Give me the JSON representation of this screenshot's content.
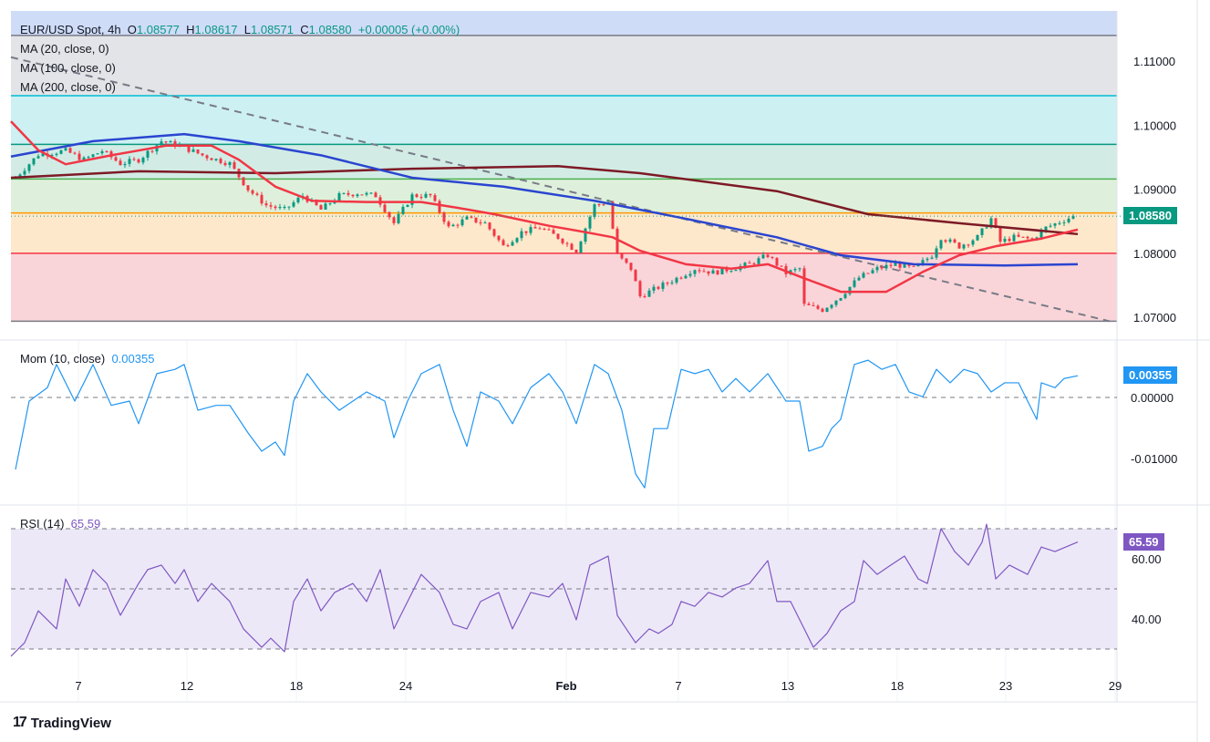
{
  "header": {
    "symbol": "EUR/USD Spot, 4h",
    "open_label": "O",
    "open": "1.08577",
    "high_label": "H",
    "high": "1.08617",
    "low_label": "L",
    "low": "1.08571",
    "close_label": "C",
    "close": "1.08580",
    "change": "+0.00005 (+0.00%)"
  },
  "indicators": {
    "ma20": "MA (20, close, 0)",
    "ma100": "MA (100, close, 0)",
    "ma200": "MA (200, close, 0)",
    "mom": "Mom (10, close)",
    "mom_value": "0.00355",
    "rsi": "RSI (14)",
    "rsi_value": "65.59"
  },
  "tags": {
    "price": "1.08580",
    "mom": "0.00355",
    "rsi": "65.59"
  },
  "logo": "TradingView",
  "colors": {
    "up": "#089981",
    "down": "#f23645",
    "ma20": "#f23645",
    "ma100": "#2a45d0",
    "ma200": "#7d1a26",
    "mom": "#2196f3",
    "rsi": "#7e57c2"
  },
  "chart_data": [
    {
      "type": "candlestick",
      "title": "EUR/USD Spot, 4h",
      "y_ticks": [
        "1.11000",
        "1.10000",
        "1.09000",
        "1.08000",
        "1.07000"
      ],
      "x_ticks": [
        "7",
        "12",
        "18",
        "24",
        "Feb",
        "7",
        "13",
        "18",
        "23",
        "29"
      ],
      "ylim": [
        1.0694,
        1.114
      ],
      "fib_levels": [
        1.114,
        1.1046,
        1.097,
        1.0916,
        1.0863,
        1.08,
        1.0694
      ],
      "trendline": [
        [
          0,
          1.1106
        ],
        [
          241,
          1.0694
        ]
      ],
      "close_keypoints": [
        [
          1,
          1.0918
        ],
        [
          6,
          1.0954
        ],
        [
          12,
          1.096
        ],
        [
          16,
          1.0946
        ],
        [
          20,
          1.096
        ],
        [
          24,
          1.094
        ],
        [
          28,
          1.0946
        ],
        [
          33,
          1.0975
        ],
        [
          37,
          1.0968
        ],
        [
          42,
          1.0953
        ],
        [
          48,
          1.094
        ],
        [
          52,
          1.09
        ],
        [
          56,
          1.0875
        ],
        [
          60,
          1.0868
        ],
        [
          64,
          1.089
        ],
        [
          68,
          1.0868
        ],
        [
          72,
          1.089
        ],
        [
          76,
          1.0894
        ],
        [
          80,
          1.089
        ],
        [
          84,
          1.0847
        ],
        [
          88,
          1.089
        ],
        [
          92,
          1.089
        ],
        [
          96,
          1.084
        ],
        [
          100,
          1.0854
        ],
        [
          104,
          1.0847
        ],
        [
          108,
          1.0811
        ],
        [
          112,
          1.0833
        ],
        [
          116,
          1.084
        ],
        [
          120,
          1.0825
        ],
        [
          124,
          1.0804
        ],
        [
          128,
          1.0875
        ],
        [
          131,
          1.088
        ],
        [
          133,
          1.0797
        ],
        [
          136,
          1.0776
        ],
        [
          138,
          1.0733
        ],
        [
          142,
          1.0747
        ],
        [
          146,
          1.0761
        ],
        [
          150,
          1.0776
        ],
        [
          154,
          1.077
        ],
        [
          158,
          1.0776
        ],
        [
          162,
          1.0783
        ],
        [
          166,
          1.0797
        ],
        [
          170,
          1.0769
        ],
        [
          173,
          1.0776
        ],
        [
          174,
          1.0719
        ],
        [
          178,
          1.0712
        ],
        [
          182,
          1.0733
        ],
        [
          186,
          1.0762
        ],
        [
          190,
          1.0776
        ],
        [
          194,
          1.0783
        ],
        [
          198,
          1.0776
        ],
        [
          202,
          1.0797
        ],
        [
          204,
          1.0825
        ],
        [
          208,
          1.0811
        ],
        [
          212,
          1.0825
        ],
        [
          215,
          1.0854
        ],
        [
          217,
          1.0818
        ],
        [
          220,
          1.0825
        ],
        [
          224,
          1.0822
        ],
        [
          227,
          1.084
        ],
        [
          233,
          1.0858
        ]
      ],
      "ma20": [
        [
          0,
          1.1006
        ],
        [
          6,
          1.0961
        ],
        [
          12,
          1.0939
        ],
        [
          22,
          1.0953
        ],
        [
          34,
          1.0968
        ],
        [
          44,
          1.0968
        ],
        [
          50,
          1.0946
        ],
        [
          58,
          1.0904
        ],
        [
          66,
          1.0882
        ],
        [
          78,
          1.088
        ],
        [
          90,
          1.088
        ],
        [
          98,
          1.0871
        ],
        [
          106,
          1.0861
        ],
        [
          118,
          1.0843
        ],
        [
          126,
          1.0833
        ],
        [
          132,
          1.0825
        ],
        [
          138,
          1.0804
        ],
        [
          148,
          1.0783
        ],
        [
          158,
          1.0776
        ],
        [
          166,
          1.0783
        ],
        [
          174,
          1.0761
        ],
        [
          182,
          1.074
        ],
        [
          192,
          1.074
        ],
        [
          200,
          1.0771
        ],
        [
          208,
          1.0797
        ],
        [
          216,
          1.0811
        ],
        [
          226,
          1.0823
        ],
        [
          234,
          1.0837
        ]
      ],
      "ma100": [
        [
          0,
          1.0951
        ],
        [
          18,
          1.0975
        ],
        [
          38,
          1.0986
        ],
        [
          50,
          1.0975
        ],
        [
          68,
          1.0953
        ],
        [
          88,
          1.0918
        ],
        [
          108,
          1.0904
        ],
        [
          128,
          1.0882
        ],
        [
          148,
          1.0854
        ],
        [
          168,
          1.0825
        ],
        [
          182,
          1.0797
        ],
        [
          198,
          1.0783
        ],
        [
          218,
          1.0781
        ],
        [
          234,
          1.0783
        ]
      ],
      "ma200": [
        [
          0,
          1.0918
        ],
        [
          28,
          1.0928
        ],
        [
          58,
          1.0925
        ],
        [
          88,
          1.0932
        ],
        [
          120,
          1.0936
        ],
        [
          138,
          1.0925
        ],
        [
          168,
          1.0897
        ],
        [
          188,
          1.0861
        ],
        [
          208,
          1.0847
        ],
        [
          234,
          1.083
        ]
      ]
    },
    {
      "type": "line",
      "title": "Mom (10, close)",
      "y_ticks": [
        "0.00000",
        "-0.01000"
      ],
      "values": [
        [
          1,
          -0.0118
        ],
        [
          4,
          -0.0006
        ],
        [
          8,
          0.0016
        ],
        [
          10,
          0.0054
        ],
        [
          14,
          -0.0006
        ],
        [
          18,
          0.0054
        ],
        [
          22,
          -0.0013
        ],
        [
          26,
          -0.0006
        ],
        [
          28,
          -0.0043
        ],
        [
          32,
          0.0039
        ],
        [
          36,
          0.0046
        ],
        [
          38,
          0.0054
        ],
        [
          41,
          -0.0021
        ],
        [
          45,
          -0.0013
        ],
        [
          48,
          -0.0013
        ],
        [
          52,
          -0.0058
        ],
        [
          55,
          -0.0088
        ],
        [
          58,
          -0.0073
        ],
        [
          60,
          -0.0095
        ],
        [
          62,
          -0.0006
        ],
        [
          65,
          0.0039
        ],
        [
          68,
          0.0009
        ],
        [
          72,
          -0.0021
        ],
        [
          75,
          -0.0006
        ],
        [
          78,
          0.0009
        ],
        [
          82,
          -0.0006
        ],
        [
          84,
          -0.0066
        ],
        [
          87,
          -0.0006
        ],
        [
          90,
          0.0039
        ],
        [
          94,
          0.0054
        ],
        [
          97,
          -0.0021
        ],
        [
          100,
          -0.008
        ],
        [
          103,
          0.0009
        ],
        [
          107,
          -0.0006
        ],
        [
          110,
          -0.0043
        ],
        [
          114,
          0.0016
        ],
        [
          118,
          0.0039
        ],
        [
          121,
          0.0009
        ],
        [
          124,
          -0.0043
        ],
        [
          128,
          0.0054
        ],
        [
          131,
          0.0039
        ],
        [
          134,
          -0.0021
        ],
        [
          137,
          -0.0125
        ],
        [
          139,
          -0.0148
        ],
        [
          141,
          -0.0051
        ],
        [
          144,
          -0.0051
        ],
        [
          147,
          0.0046
        ],
        [
          150,
          0.0039
        ],
        [
          153,
          0.0046
        ],
        [
          156,
          0.0009
        ],
        [
          159,
          0.0031
        ],
        [
          162,
          0.0009
        ],
        [
          166,
          0.0039
        ],
        [
          170,
          -0.0006
        ],
        [
          173,
          -0.0006
        ],
        [
          175,
          -0.0088
        ],
        [
          178,
          -0.008
        ],
        [
          180,
          -0.0051
        ],
        [
          182,
          -0.0036
        ],
        [
          185,
          0.0054
        ],
        [
          188,
          0.0061
        ],
        [
          191,
          0.0046
        ],
        [
          194,
          0.0054
        ],
        [
          197,
          0.0009
        ],
        [
          200,
          0.0001
        ],
        [
          203,
          0.0046
        ],
        [
          206,
          0.0024
        ],
        [
          209,
          0.0046
        ],
        [
          212,
          0.0039
        ],
        [
          215,
          0.0009
        ],
        [
          218,
          0.0024
        ],
        [
          221,
          0.0024
        ],
        [
          223,
          -0.0006
        ],
        [
          225,
          -0.0036
        ],
        [
          226,
          0.0024
        ],
        [
          229,
          0.0016
        ],
        [
          231,
          0.0031
        ],
        [
          234,
          0.00355
        ]
      ]
    },
    {
      "type": "line",
      "title": "RSI (14)",
      "y_ticks": [
        "60.00",
        "40.00"
      ],
      "bands": [
        70,
        50,
        30
      ],
      "values": [
        [
          0,
          27.6
        ],
        [
          3,
          32.1
        ],
        [
          6,
          42.7
        ],
        [
          10,
          36.7
        ],
        [
          12,
          53.3
        ],
        [
          15,
          44.2
        ],
        [
          18,
          56.4
        ],
        [
          21,
          51.8
        ],
        [
          24,
          41.2
        ],
        [
          28,
          51.8
        ],
        [
          30,
          56.4
        ],
        [
          33,
          57.9
        ],
        [
          36,
          51.8
        ],
        [
          38,
          56.4
        ],
        [
          41,
          45.8
        ],
        [
          44,
          51.8
        ],
        [
          48,
          45.8
        ],
        [
          51,
          36.7
        ],
        [
          55,
          30.6
        ],
        [
          57,
          33.6
        ],
        [
          60,
          29.1
        ],
        [
          62,
          45.8
        ],
        [
          65,
          53.3
        ],
        [
          68,
          42.7
        ],
        [
          71,
          48.8
        ],
        [
          75,
          51.8
        ],
        [
          78,
          45.8
        ],
        [
          81,
          56.4
        ],
        [
          84,
          36.7
        ],
        [
          87,
          45.8
        ],
        [
          90,
          54.8
        ],
        [
          94,
          48.8
        ],
        [
          97,
          38.2
        ],
        [
          100,
          36.7
        ],
        [
          103,
          45.8
        ],
        [
          107,
          48.8
        ],
        [
          110,
          36.7
        ],
        [
          114,
          48.8
        ],
        [
          118,
          47.3
        ],
        [
          121,
          51.8
        ],
        [
          124,
          39.7
        ],
        [
          127,
          57.9
        ],
        [
          131,
          60.9
        ],
        [
          133,
          41.2
        ],
        [
          137,
          32.1
        ],
        [
          140,
          36.7
        ],
        [
          142,
          35.2
        ],
        [
          145,
          38.2
        ],
        [
          147,
          45.8
        ],
        [
          150,
          44.2
        ],
        [
          153,
          48.8
        ],
        [
          156,
          47.3
        ],
        [
          159,
          50.3
        ],
        [
          162,
          51.8
        ],
        [
          166,
          59.4
        ],
        [
          168,
          45.8
        ],
        [
          171,
          45.8
        ],
        [
          174,
          36.7
        ],
        [
          176,
          30.6
        ],
        [
          179,
          35.2
        ],
        [
          182,
          42.7
        ],
        [
          185,
          45.8
        ],
        [
          187,
          59.4
        ],
        [
          190,
          54.8
        ],
        [
          193,
          57.9
        ],
        [
          196,
          60.9
        ],
        [
          199,
          53.3
        ],
        [
          201,
          51.8
        ],
        [
          204,
          70
        ],
        [
          207,
          62.4
        ],
        [
          210,
          57.9
        ],
        [
          213,
          65.5
        ],
        [
          214,
          71.5
        ],
        [
          216,
          53.3
        ],
        [
          219,
          57.9
        ],
        [
          223,
          54.8
        ],
        [
          226,
          63.9
        ],
        [
          229,
          62.4
        ],
        [
          234,
          65.59
        ]
      ]
    }
  ]
}
